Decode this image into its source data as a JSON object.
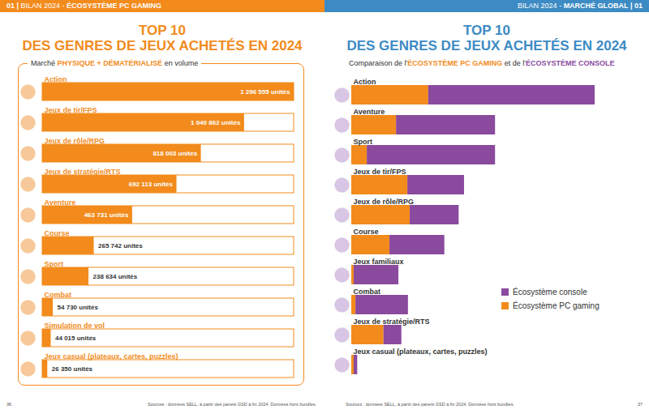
{
  "chart_data": [
    {
      "type": "bar",
      "orientation": "horizontal",
      "title": [
        "TOP 10",
        "DES GENRES DE JEUX ACHETÉS EN 2024"
      ],
      "subtitle": [
        {
          "text": "Marché "
        },
        {
          "text": "PHYSIQUE + DÉMATÉRIALISÉ",
          "color": "#f28b1c"
        },
        {
          "text": " en volume"
        }
      ],
      "categories": [
        "Action",
        "Jeux de tir/FPS",
        "Jeux de rôle/RPG",
        "Jeux de stratégie/RTS",
        "Aventure",
        "Course",
        "Sport",
        "Combat",
        "Simulation de vol",
        "Jeux casual (plateaux, cartes, puzzles)"
      ],
      "values": [
        1296555,
        1040862,
        818003,
        692113,
        463731,
        265742,
        238634,
        54730,
        44015,
        26350
      ],
      "value_labels": [
        "1 296 555 unités",
        "1 040 862 unités",
        "818 003 unités",
        "692 113 unités",
        "463 731 unités",
        "265 742 unités",
        "238 634 unités",
        "54 730 unités",
        "44 015 unités",
        "26 350 unités"
      ],
      "color": "#f28b1c",
      "xlim": [
        0,
        1296555
      ],
      "xticks": [],
      "tick_labels": false,
      "data_labels": true
    },
    {
      "type": "bar",
      "orientation": "horizontal",
      "stacked": true,
      "title": [
        "TOP 10",
        "DES GENRES DE JEUX ACHETÉS EN 2024"
      ],
      "subtitle": [
        {
          "text": "Comparaison de l'"
        },
        {
          "text": "ÉCOSYSTÈME PC GAMING",
          "color": "#f28b1c"
        },
        {
          "text": " et de l'"
        },
        {
          "text": "ÉCOSYSTÈME CONSOLE",
          "color": "#8a4a9e"
        }
      ],
      "categories": [
        "Action",
        "Aventure",
        "Sport",
        "Jeux de tir/FPS",
        "Jeux de rôle/RPG",
        "Course",
        "Jeux familiaux",
        "Combat",
        "Jeux de stratégie/RTS",
        "Jeux casual (plateaux, cartes, puzzles)"
      ],
      "series": [
        {
          "name": "Écosystème PC gaming",
          "color": "#f28b1c",
          "values": [
            1290000,
            750000,
            260000,
            940000,
            980000,
            640000,
            40000,
            70000,
            540000,
            40000
          ]
        },
        {
          "name": "Écosystème console",
          "color": "#8a4a9e",
          "values": [
            2790000,
            1660000,
            2150000,
            950000,
            820000,
            920000,
            750000,
            880000,
            300000,
            60000
          ]
        }
      ],
      "xlim": [
        0,
        4080000
      ],
      "xticks": [],
      "tick_labels": false,
      "legend": "right"
    }
  ],
  "pages": [
    {
      "header": [
        {
          "text": "01 | ",
          "weight": "bold"
        },
        {
          "text": "BILAN 2024 - "
        },
        {
          "text": "ÉCOSYSTÈME PC GAMING",
          "weight": "bold"
        }
      ],
      "header_color": "#f28b1c",
      "title_color": "#f28b1c",
      "page_number": "36",
      "source": "Sources : données SELL, à partir des panels GSD à fin 2024. Données hors bundles."
    },
    {
      "header": [
        {
          "text": "BILAN 2024 - "
        },
        {
          "text": "MARCHÉ GLOBAL",
          "weight": "bold"
        },
        {
          "text": " | 01",
          "weight": "bold"
        }
      ],
      "header_color": "#3d8bc4",
      "title_color": "#3d8bc4",
      "page_number": "37",
      "source": "Sources : données SELL, à partir des panels GSD à fin 2024. Données hors bundles."
    }
  ]
}
